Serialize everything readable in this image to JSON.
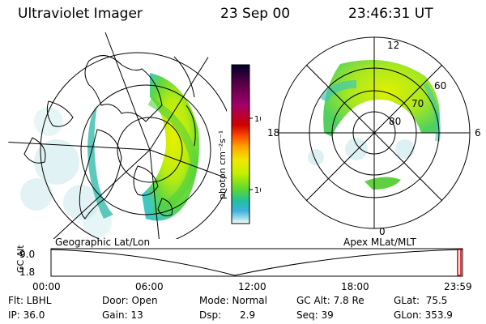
{
  "header": {
    "instrument": "Ultraviolet Imager",
    "date": "23 Sep 00",
    "time": "23:46:31 UT"
  },
  "colorbar": {
    "label": "photon cm⁻²s⁻¹",
    "ticks": [
      "100",
      "10"
    ],
    "colors": [
      "#00002a",
      "#4b0040",
      "#a0006a",
      "#d00000",
      "#ff5a00",
      "#ffa800",
      "#f0e800",
      "#c8f000",
      "#60d830",
      "#20c0a0",
      "#40b0e0",
      "#a8e0e8",
      "#ffffff"
    ]
  },
  "left_panel": {
    "caption": "Geographic Lat/Lon"
  },
  "right_panel": {
    "caption": "Apex MLat/MLT",
    "mlt_labels": {
      "top": "12",
      "right": "6",
      "bottom": "0",
      "left": "18"
    },
    "lat_labels": [
      "60",
      "70",
      "80"
    ]
  },
  "timeline": {
    "axis_title": "GC Alt",
    "y_ticks": [
      "9.0",
      "1.8"
    ],
    "x_ticks": [
      "00:00",
      "06:00",
      "12:00",
      "18:00",
      "23:59"
    ],
    "marker_color": "#cc0000"
  },
  "info": {
    "row1": {
      "flt": "Flt: LBHL",
      "door": "Door: Open",
      "mode": "Mode: Normal",
      "gcalt": "GC Alt: 7.8 Re",
      "glat": "GLat:  75.5"
    },
    "row2": {
      "ip": "IP: 36.0",
      "gain": "Gain: 13",
      "dsp": "Dsp:      2.9",
      "seq": "Seq: 39",
      "glon": "GLon: 353.9"
    }
  }
}
